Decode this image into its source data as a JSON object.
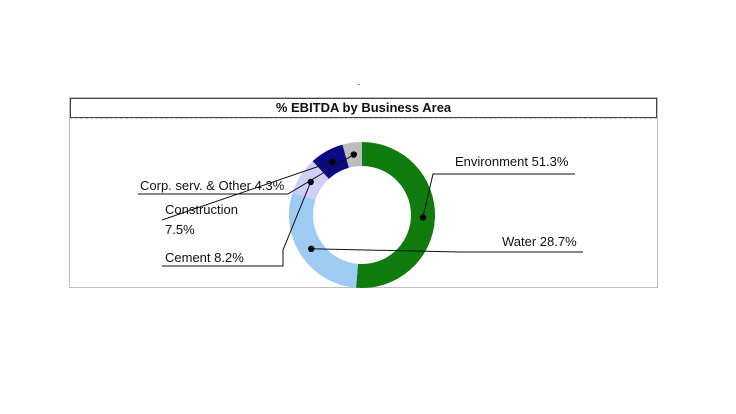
{
  "chart_data": {
    "type": "pie",
    "title": "% EBITDA by Business Area",
    "donut": true,
    "slices": [
      {
        "name": "Environment",
        "value": 51.3,
        "label": "Environment 51.3%",
        "color": "#107c10"
      },
      {
        "name": "Water",
        "value": 28.7,
        "label": "Water 28.7%",
        "color": "#9ecbf2"
      },
      {
        "name": "Cement",
        "value": 8.2,
        "label": "Cement 8.2%",
        "color": "#cfcff7"
      },
      {
        "name": "Construction",
        "value": 7.5,
        "label_lines": [
          "Construction",
          "7.5%"
        ],
        "color": "#0a0a85"
      },
      {
        "name": "Corp. serv. & Other",
        "value": 4.3,
        "label": "Corp. serv. & Other 4.3%",
        "color": "#bdbdbd"
      }
    ]
  }
}
